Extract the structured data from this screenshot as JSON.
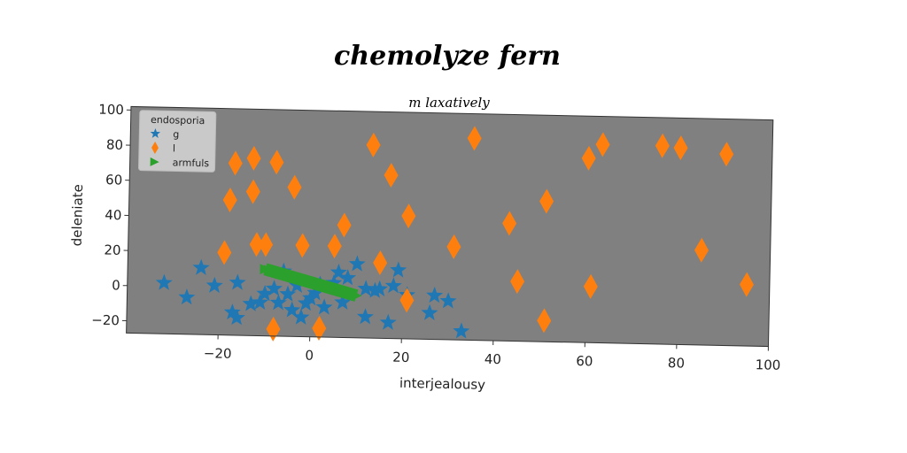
{
  "chart_data": {
    "type": "scatter",
    "title": "chemolyze fern",
    "subtitle": "m laxatively",
    "xlabel": "interjealousy",
    "ylabel": "deleniate",
    "xlim": [
      -40,
      100
    ],
    "ylim": [
      -27,
      102
    ],
    "xticks": [
      -20,
      0,
      20,
      40,
      60,
      80,
      100
    ],
    "yticks": [
      -20,
      0,
      20,
      40,
      60,
      80,
      100
    ],
    "grid": false,
    "legend": {
      "title": "endosporia",
      "placement": "top-left"
    },
    "colors": {
      "plot_bg": "#808080",
      "g": "#1f77b4",
      "l": "#ff7f0e",
      "armfuls": "#2ca02c"
    },
    "series": [
      {
        "name": "g",
        "marker": "star",
        "points": [
          [
            -32,
            2
          ],
          [
            -27,
            -6
          ],
          [
            -24,
            11
          ],
          [
            -21,
            1
          ],
          [
            -16,
            3
          ],
          [
            -17,
            -14
          ],
          [
            -16,
            -17
          ],
          [
            -11,
            -8
          ],
          [
            -10,
            -3
          ],
          [
            -8,
            0
          ],
          [
            -7,
            -8
          ],
          [
            -6,
            10
          ],
          [
            -5,
            -3
          ],
          [
            -4,
            -12
          ],
          [
            -3,
            2
          ],
          [
            -2,
            -16
          ],
          [
            0,
            -5
          ],
          [
            1,
            -2
          ],
          [
            2,
            3
          ],
          [
            3,
            -10
          ],
          [
            5,
            4
          ],
          [
            6,
            10
          ],
          [
            7,
            -7
          ],
          [
            8,
            7
          ],
          [
            10,
            15
          ],
          [
            12,
            -15
          ],
          [
            14,
            0
          ],
          [
            15,
            1
          ],
          [
            17,
            -18
          ],
          [
            18,
            3
          ],
          [
            19,
            12
          ],
          [
            21,
            -2
          ],
          [
            26,
            -12
          ],
          [
            27,
            -2
          ],
          [
            30,
            -5
          ],
          [
            33,
            -22
          ],
          [
            12,
            1
          ],
          [
            -1,
            -8
          ],
          [
            -13,
            -9
          ]
        ]
      },
      {
        "name": "l",
        "marker": "diamond",
        "points": [
          [
            -19,
            20
          ],
          [
            -18,
            50
          ],
          [
            -17,
            71
          ],
          [
            -13,
            74
          ],
          [
            -13,
            55
          ],
          [
            -12,
            25
          ],
          [
            -10,
            25
          ],
          [
            -8,
            72
          ],
          [
            -8,
            -23
          ],
          [
            -4,
            58
          ],
          [
            -2,
            25
          ],
          [
            2,
            -22
          ],
          [
            5,
            25
          ],
          [
            7,
            37
          ],
          [
            13,
            83
          ],
          [
            15,
            16
          ],
          [
            17,
            66
          ],
          [
            21,
            43
          ],
          [
            21,
            -5
          ],
          [
            31,
            26
          ],
          [
            35,
            88
          ],
          [
            43,
            40
          ],
          [
            45,
            7
          ],
          [
            51,
            53
          ],
          [
            51,
            -15
          ],
          [
            60,
            78
          ],
          [
            61,
            5
          ],
          [
            63,
            86
          ],
          [
            76,
            86
          ],
          [
            80,
            85
          ],
          [
            85,
            27
          ],
          [
            90,
            82
          ],
          [
            95,
            8
          ]
        ]
      },
      {
        "name": "armfuls",
        "marker": "triangle-right",
        "line": {
          "from": [
            -10,
            11
          ],
          "to": [
            10,
            -3
          ]
        }
      }
    ]
  }
}
